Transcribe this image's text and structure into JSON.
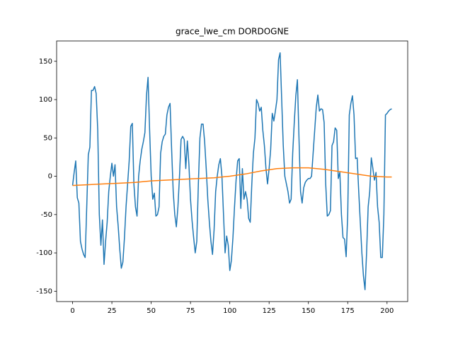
{
  "chart_data": {
    "type": "line",
    "title": "grace_lwe_cm DORDOGNE",
    "xlim": [
      -10.15,
      213.15
    ],
    "ylim": [
      -163.5,
      176.5
    ],
    "xticks": [
      0,
      25,
      50,
      75,
      100,
      125,
      150,
      175,
      200
    ],
    "yticks": [
      -150,
      -100,
      -50,
      0,
      50,
      100,
      150
    ],
    "grid": false,
    "series": [
      {
        "color": "#1f77b4",
        "x": [
          0,
          1,
          2,
          3,
          4,
          5,
          6,
          7,
          8,
          9,
          10,
          11,
          12,
          13,
          14,
          15,
          16,
          17,
          18,
          19,
          20,
          21,
          22,
          23,
          24,
          25,
          26,
          27,
          28,
          29,
          30,
          31,
          32,
          33,
          34,
          35,
          36,
          37,
          38,
          39,
          40,
          41,
          42,
          43,
          44,
          45,
          46,
          47,
          48,
          49,
          50,
          51,
          52,
          53,
          54,
          55,
          56,
          57,
          58,
          59,
          60,
          61,
          62,
          63,
          64,
          65,
          66,
          67,
          68,
          69,
          70,
          71,
          72,
          73,
          74,
          75,
          76,
          77,
          78,
          79,
          80,
          81,
          82,
          83,
          84,
          85,
          86,
          87,
          88,
          89,
          90,
          91,
          92,
          93,
          94,
          95,
          96,
          97,
          98,
          99,
          100,
          101,
          102,
          103,
          104,
          105,
          106,
          107,
          108,
          109,
          110,
          111,
          112,
          113,
          114,
          115,
          116,
          117,
          118,
          119,
          120,
          121,
          122,
          123,
          124,
          125,
          126,
          127,
          128,
          129,
          130,
          131,
          132,
          133,
          134,
          135,
          136,
          137,
          138,
          139,
          140,
          141,
          142,
          143,
          144,
          145,
          146,
          147,
          148,
          149,
          150,
          151,
          152,
          153,
          154,
          155,
          156,
          157,
          158,
          159,
          160,
          161,
          162,
          163,
          164,
          165,
          166,
          167,
          168,
          169,
          170,
          171,
          172,
          173,
          174,
          175,
          176,
          177,
          178,
          179,
          180,
          181,
          182,
          183,
          184,
          185,
          186,
          187,
          188,
          189,
          190,
          191,
          192,
          193,
          194,
          195,
          196,
          197,
          198,
          199,
          200,
          201,
          202,
          203
        ],
        "values": [
          -12,
          5,
          20,
          -28,
          -35,
          -85,
          -95,
          -102,
          -106,
          -40,
          28,
          38,
          112,
          112,
          117,
          108,
          60,
          -50,
          -90,
          -57,
          -115,
          -85,
          -60,
          -20,
          0,
          17,
          0,
          15,
          -40,
          -65,
          -95,
          -120,
          -112,
          -80,
          -40,
          -10,
          20,
          65,
          69,
          -10,
          -40,
          -52,
          0,
          20,
          35,
          45,
          57,
          105,
          129,
          60,
          0,
          -30,
          -22,
          -52,
          -50,
          -40,
          30,
          45,
          52,
          55,
          80,
          90,
          95,
          35,
          -20,
          -50,
          -66,
          -40,
          0,
          48,
          52,
          48,
          10,
          46,
          15,
          -30,
          -58,
          -80,
          -100,
          -85,
          -10,
          50,
          68,
          68,
          45,
          10,
          -30,
          -60,
          -85,
          -102,
          -70,
          -20,
          0,
          15,
          23,
          0,
          -50,
          -100,
          -78,
          -90,
          -123,
          -110,
          -80,
          -40,
          -5,
          20,
          23,
          -42,
          10,
          -30,
          -20,
          -30,
          -55,
          -60,
          -10,
          30,
          50,
          100,
          95,
          85,
          90,
          60,
          40,
          10,
          -10,
          10,
          35,
          82,
          72,
          85,
          100,
          152,
          161,
          100,
          40,
          0,
          -10,
          -20,
          -35,
          -30,
          30,
          70,
          105,
          126,
          50,
          -20,
          -35,
          -15,
          -8,
          -5,
          -3,
          -3,
          0,
          30,
          60,
          90,
          106,
          85,
          88,
          87,
          70,
          -10,
          -52,
          -50,
          -45,
          40,
          45,
          63,
          60,
          -3,
          5,
          -50,
          -80,
          -82,
          -105,
          -50,
          80,
          95,
          105,
          80,
          23,
          24,
          -20,
          -60,
          -100,
          -130,
          -148,
          -100,
          -40,
          -20,
          24,
          10,
          -5,
          5,
          -40,
          -60,
          -106,
          -106,
          -50,
          80,
          82,
          85,
          87,
          88
        ]
      },
      {
        "color": "#ff7f0e",
        "x": [
          0,
          10,
          20,
          30,
          40,
          50,
          60,
          70,
          80,
          90,
          100,
          110,
          120,
          130,
          140,
          150,
          160,
          170,
          180,
          190,
          200,
          203
        ],
        "values": [
          -12,
          -11,
          -10,
          -9,
          -8,
          -6,
          -5,
          -4,
          -3,
          -2,
          0,
          3,
          7,
          10,
          11,
          11,
          9,
          6,
          3,
          0,
          -1,
          -1
        ]
      }
    ]
  }
}
